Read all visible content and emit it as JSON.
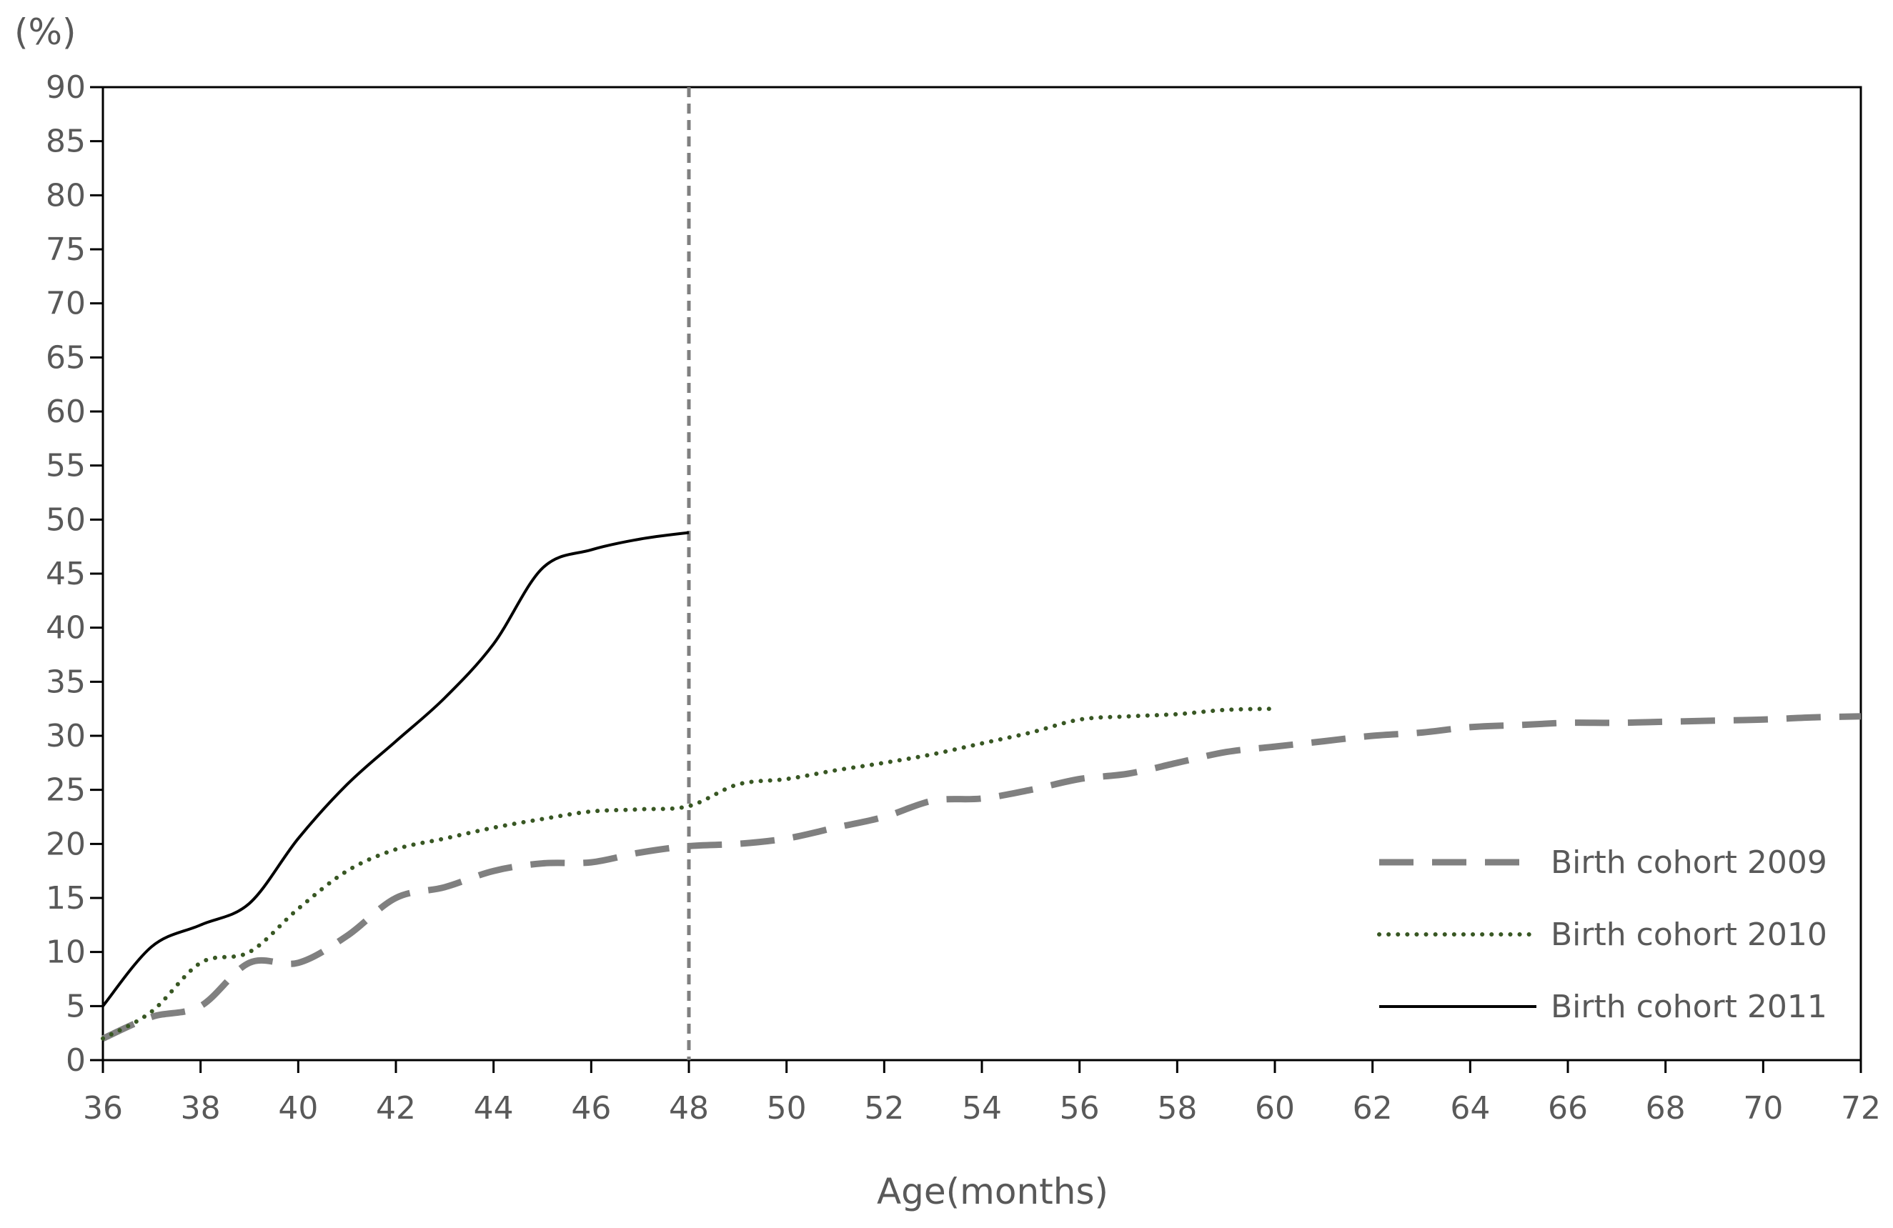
{
  "chart_data": {
    "type": "line",
    "y_unit_label": "(%)",
    "xlabel": "Age(months)",
    "ylabel": "",
    "xlim": [
      36,
      72
    ],
    "ylim": [
      0,
      90
    ],
    "x_ticks": [
      36,
      38,
      40,
      42,
      44,
      46,
      48,
      50,
      52,
      54,
      56,
      58,
      60,
      62,
      64,
      66,
      68,
      70,
      72
    ],
    "y_ticks": [
      0,
      5,
      10,
      15,
      20,
      25,
      30,
      35,
      40,
      45,
      50,
      55,
      60,
      65,
      70,
      75,
      80,
      85,
      90
    ],
    "reference_line": {
      "x": 48
    },
    "grid": false,
    "legend_position": "bottom-right",
    "series": [
      {
        "name": "Birth cohort 2009",
        "style": "dashed",
        "color": "#808080",
        "x": [
          36,
          37,
          38,
          39,
          40,
          41,
          42,
          43,
          44,
          45,
          46,
          47,
          48,
          49,
          50,
          51,
          52,
          53,
          54,
          55,
          56,
          57,
          58,
          59,
          60,
          61,
          62,
          63,
          64,
          65,
          66,
          67,
          68,
          69,
          70,
          71,
          72
        ],
        "y": [
          2,
          4,
          5,
          9,
          9,
          11.5,
          15,
          16,
          17.5,
          18.2,
          18.3,
          19.2,
          19.8,
          20,
          20.5,
          21.5,
          22.5,
          24,
          24.2,
          25,
          26,
          26.5,
          27.5,
          28.5,
          29,
          29.5,
          30,
          30.3,
          30.8,
          31,
          31.2,
          31.2,
          31.3,
          31.4,
          31.5,
          31.7,
          31.8
        ]
      },
      {
        "name": "Birth cohort 2010",
        "style": "dotted",
        "color": "#385723",
        "x": [
          36,
          37,
          38,
          39,
          40,
          41,
          42,
          43,
          44,
          45,
          46,
          47,
          48,
          49,
          50,
          51,
          52,
          53,
          54,
          55,
          56,
          57,
          58,
          59,
          60
        ],
        "y": [
          2,
          4.5,
          9,
          10,
          14,
          17.5,
          19.5,
          20.5,
          21.5,
          22.3,
          23,
          23.2,
          23.5,
          25.5,
          26,
          26.8,
          27.5,
          28.3,
          29.3,
          30.3,
          31.5,
          31.8,
          32,
          32.4,
          32.5
        ]
      },
      {
        "name": "Birth cohort 2011",
        "style": "solid",
        "color": "#000000",
        "x": [
          36,
          37,
          38,
          39,
          40,
          41,
          42,
          43,
          44,
          45,
          46,
          47,
          48
        ],
        "y": [
          5,
          10.5,
          12.5,
          14.5,
          20.5,
          25.5,
          29.5,
          33.5,
          38.5,
          45.5,
          47.2,
          48.2,
          48.8
        ]
      }
    ]
  }
}
